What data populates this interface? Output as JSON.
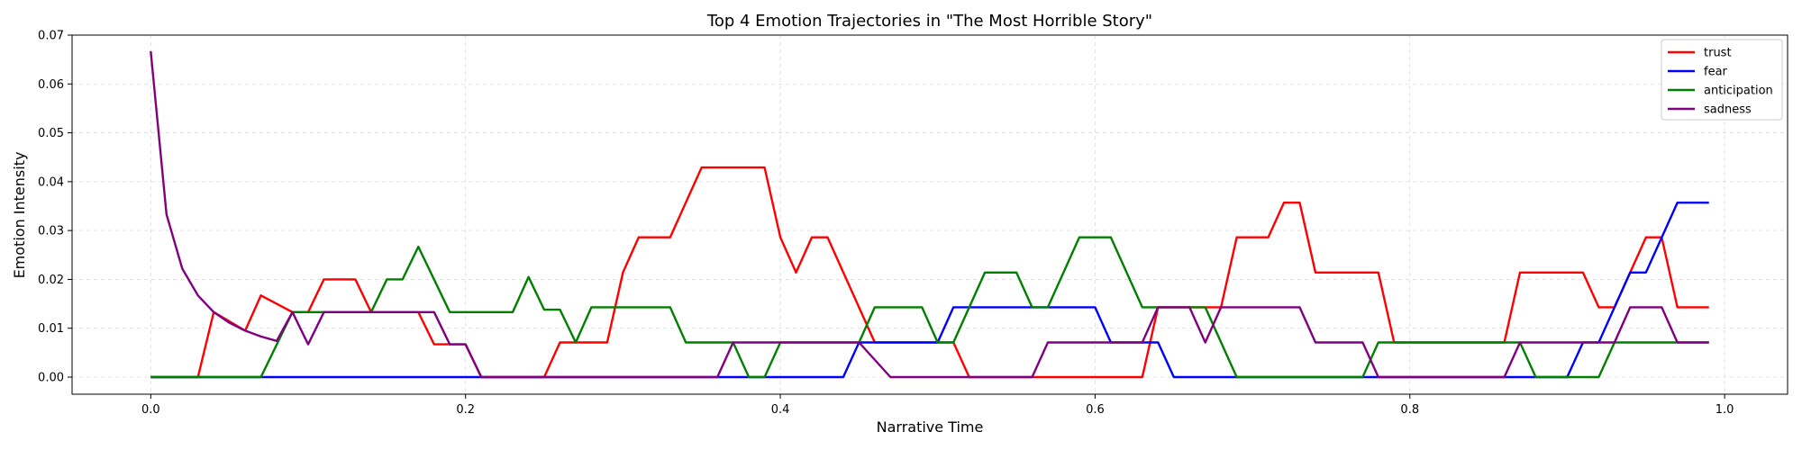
{
  "chart_data": {
    "type": "line",
    "title": "Top 4 Emotion Trajectories in \"The Most Horrible Story\"",
    "xlabel": "Narrative Time",
    "ylabel": "Emotion Intensity",
    "xlim": [
      -0.05,
      1.04
    ],
    "ylim": [
      -0.0035,
      0.07
    ],
    "xticks": [
      0.0,
      0.2,
      0.4,
      0.6,
      0.8,
      1.0
    ],
    "xtick_labels": [
      "0.0",
      "0.2",
      "0.4",
      "0.6",
      "0.8",
      "1.0"
    ],
    "yticks": [
      0.0,
      0.01,
      0.02,
      0.03,
      0.04,
      0.05,
      0.06,
      0.07
    ],
    "ytick_labels": [
      "0.00",
      "0.01",
      "0.02",
      "0.03",
      "0.04",
      "0.05",
      "0.06",
      "0.07"
    ],
    "grid": true,
    "legend_position": "top-right",
    "series": [
      {
        "name": "trust",
        "color": "#ff0000",
        "points": [
          [
            0.0,
            0.0
          ],
          [
            0.03,
            0.0
          ],
          [
            0.04,
            0.0133
          ],
          [
            0.06,
            0.0095
          ],
          [
            0.07,
            0.0167
          ],
          [
            0.08,
            0.015
          ],
          [
            0.09,
            0.0133
          ],
          [
            0.1,
            0.0133
          ],
          [
            0.11,
            0.02
          ],
          [
            0.13,
            0.02
          ],
          [
            0.14,
            0.0133
          ],
          [
            0.17,
            0.0133
          ],
          [
            0.18,
            0.0067
          ],
          [
            0.2,
            0.0067
          ],
          [
            0.21,
            0.0
          ],
          [
            0.25,
            0.0
          ],
          [
            0.26,
            0.0071
          ],
          [
            0.29,
            0.0071
          ],
          [
            0.3,
            0.0214
          ],
          [
            0.31,
            0.0286
          ],
          [
            0.33,
            0.0286
          ],
          [
            0.35,
            0.0429
          ],
          [
            0.39,
            0.0429
          ],
          [
            0.4,
            0.0286
          ],
          [
            0.41,
            0.0214
          ],
          [
            0.42,
            0.0286
          ],
          [
            0.43,
            0.0286
          ],
          [
            0.46,
            0.0071
          ],
          [
            0.51,
            0.0071
          ],
          [
            0.52,
            0.0
          ],
          [
            0.63,
            0.0
          ],
          [
            0.64,
            0.0143
          ],
          [
            0.68,
            0.0143
          ],
          [
            0.69,
            0.0286
          ],
          [
            0.71,
            0.0286
          ],
          [
            0.72,
            0.0357
          ],
          [
            0.73,
            0.0357
          ],
          [
            0.74,
            0.0214
          ],
          [
            0.78,
            0.0214
          ],
          [
            0.79,
            0.0071
          ],
          [
            0.86,
            0.0071
          ],
          [
            0.87,
            0.0214
          ],
          [
            0.91,
            0.0214
          ],
          [
            0.92,
            0.0143
          ],
          [
            0.93,
            0.0143
          ],
          [
            0.95,
            0.0286
          ],
          [
            0.96,
            0.0286
          ],
          [
            0.97,
            0.0143
          ],
          [
            0.99,
            0.0143
          ]
        ]
      },
      {
        "name": "fear",
        "color": "#0000ff",
        "points": [
          [
            0.0,
            0.0
          ],
          [
            0.44,
            0.0
          ],
          [
            0.45,
            0.0071
          ],
          [
            0.5,
            0.0071
          ],
          [
            0.51,
            0.0143
          ],
          [
            0.6,
            0.0143
          ],
          [
            0.61,
            0.0071
          ],
          [
            0.64,
            0.0071
          ],
          [
            0.65,
            0.0
          ],
          [
            0.89,
            0.0
          ],
          [
            0.9,
            0.0
          ],
          [
            0.91,
            0.0071
          ],
          [
            0.92,
            0.0071
          ],
          [
            0.94,
            0.0214
          ],
          [
            0.95,
            0.0214
          ],
          [
            0.97,
            0.0357
          ],
          [
            0.99,
            0.0357
          ]
        ]
      },
      {
        "name": "anticipation",
        "color": "#008000",
        "points": [
          [
            0.0,
            0.0
          ],
          [
            0.07,
            0.0
          ],
          [
            0.09,
            0.0133
          ],
          [
            0.14,
            0.0133
          ],
          [
            0.15,
            0.02
          ],
          [
            0.16,
            0.02
          ],
          [
            0.17,
            0.0267
          ],
          [
            0.19,
            0.0133
          ],
          [
            0.23,
            0.0133
          ],
          [
            0.24,
            0.0205
          ],
          [
            0.25,
            0.0138
          ],
          [
            0.26,
            0.0138
          ],
          [
            0.27,
            0.0071
          ],
          [
            0.28,
            0.0143
          ],
          [
            0.33,
            0.0143
          ],
          [
            0.34,
            0.0071
          ],
          [
            0.37,
            0.0071
          ],
          [
            0.38,
            0.0
          ],
          [
            0.39,
            0.0
          ],
          [
            0.4,
            0.0071
          ],
          [
            0.45,
            0.0071
          ],
          [
            0.46,
            0.0143
          ],
          [
            0.49,
            0.0143
          ],
          [
            0.5,
            0.0071
          ],
          [
            0.51,
            0.0071
          ],
          [
            0.53,
            0.0214
          ],
          [
            0.55,
            0.0214
          ],
          [
            0.56,
            0.0143
          ],
          [
            0.57,
            0.0143
          ],
          [
            0.59,
            0.0286
          ],
          [
            0.61,
            0.0286
          ],
          [
            0.63,
            0.0143
          ],
          [
            0.67,
            0.0143
          ],
          [
            0.69,
            0.0
          ],
          [
            0.77,
            0.0
          ],
          [
            0.78,
            0.0071
          ],
          [
            0.86,
            0.0071
          ],
          [
            0.87,
            0.0071
          ],
          [
            0.88,
            0.0
          ],
          [
            0.92,
            0.0
          ],
          [
            0.93,
            0.0071
          ],
          [
            0.99,
            0.0071
          ]
        ]
      },
      {
        "name": "sadness",
        "color": "#800080",
        "points": [
          [
            0.0,
            0.0667
          ],
          [
            0.01,
            0.0333
          ],
          [
            0.02,
            0.0222
          ],
          [
            0.03,
            0.0167
          ],
          [
            0.04,
            0.0133
          ],
          [
            0.05,
            0.0111
          ],
          [
            0.06,
            0.0095
          ],
          [
            0.07,
            0.0083
          ],
          [
            0.08,
            0.0074
          ],
          [
            0.09,
            0.0133
          ],
          [
            0.1,
            0.0067
          ],
          [
            0.11,
            0.0133
          ],
          [
            0.18,
            0.0133
          ],
          [
            0.19,
            0.0067
          ],
          [
            0.2,
            0.0067
          ],
          [
            0.21,
            0.0
          ],
          [
            0.36,
            0.0
          ],
          [
            0.37,
            0.0071
          ],
          [
            0.45,
            0.0071
          ],
          [
            0.47,
            0.0
          ],
          [
            0.56,
            0.0
          ],
          [
            0.57,
            0.0071
          ],
          [
            0.62,
            0.0071
          ],
          [
            0.63,
            0.0071
          ],
          [
            0.64,
            0.0143
          ],
          [
            0.66,
            0.0143
          ],
          [
            0.67,
            0.0071
          ],
          [
            0.68,
            0.0143
          ],
          [
            0.73,
            0.0143
          ],
          [
            0.74,
            0.0071
          ],
          [
            0.77,
            0.0071
          ],
          [
            0.78,
            0.0
          ],
          [
            0.86,
            0.0
          ],
          [
            0.87,
            0.0071
          ],
          [
            0.93,
            0.0071
          ],
          [
            0.94,
            0.0143
          ],
          [
            0.96,
            0.0143
          ],
          [
            0.97,
            0.0071
          ],
          [
            0.99,
            0.0071
          ]
        ]
      }
    ]
  }
}
